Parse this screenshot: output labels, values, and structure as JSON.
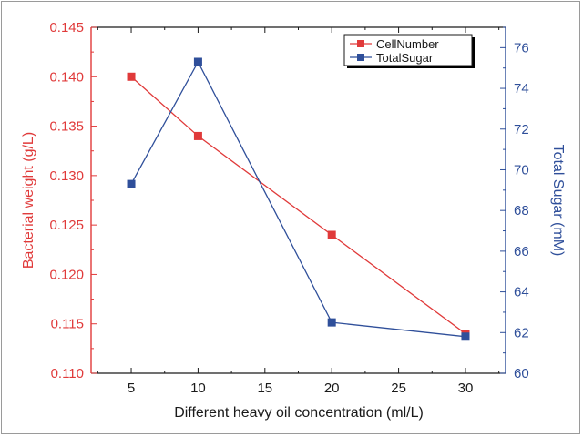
{
  "chart_data": {
    "type": "line",
    "x": [
      5,
      10,
      20,
      30
    ],
    "xlabel": "Different heavy oil concentration (ml/L)",
    "xlim": [
      2,
      33
    ],
    "xticks": [
      5,
      10,
      15,
      20,
      25,
      30
    ],
    "y_left": {
      "label": "Bacterial weight (g/L)",
      "range": [
        0.11,
        0.145
      ],
      "ticks": [
        "0.110",
        "0.115",
        "0.120",
        "0.125",
        "0.130",
        "0.135",
        "0.140",
        "0.145"
      ],
      "color": "#e03a3a"
    },
    "y_right": {
      "label": "Total Sugar (mM)",
      "range": [
        60,
        77
      ],
      "ticks": [
        "60",
        "62",
        "64",
        "66",
        "68",
        "70",
        "72",
        "74",
        "76"
      ],
      "color": "#2f4f9a"
    },
    "series": [
      {
        "name": "CellNumber",
        "axis": "left",
        "values": [
          0.14,
          0.134,
          0.124,
          0.114
        ],
        "color": "#e03a3a"
      },
      {
        "name": "TotalSugar",
        "axis": "right",
        "values": [
          69.3,
          75.3,
          62.5,
          61.8
        ],
        "color": "#2f4f9a"
      }
    ],
    "legend_position": "top-right",
    "grid": false
  }
}
